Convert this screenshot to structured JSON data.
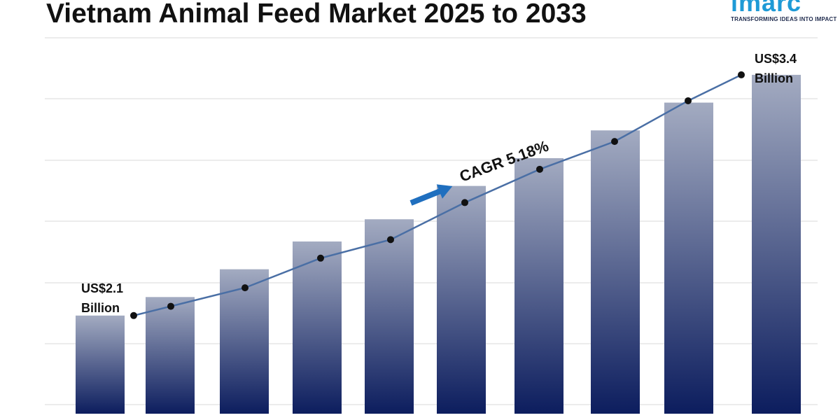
{
  "header": {
    "title": "Vietnam Animal Feed Market 2025 to 2033"
  },
  "logo": {
    "wordmark": "imarc",
    "tagline": "TRANSFORMING IDEAS INTO IMPACT",
    "color": "#1e9ad6"
  },
  "chart_data": {
    "type": "bar",
    "title": "Vietnam Animal Feed Market 2025 to 2033",
    "categories": [
      "",
      "",
      "",
      "",
      "",
      "",
      "",
      "",
      "",
      ""
    ],
    "series": [
      {
        "values": [
          2.1,
          2.2,
          2.35,
          2.5,
          2.62,
          2.8,
          2.95,
          3.1,
          3.25,
          3.4
        ]
      }
    ],
    "trend_line": {
      "values": [
        2.1,
        2.15,
        2.25,
        2.41,
        2.51,
        2.71,
        2.89,
        3.04,
        3.26,
        3.4
      ]
    },
    "ylim": [
      1.57,
      3.6
    ],
    "grid": true,
    "annotations": {
      "start_value": "US$2.1",
      "start_unit": "Billion",
      "end_value": "US$3.4",
      "end_unit": "Billion",
      "cagr": "CAGR 5.18%"
    },
    "colors": {
      "bar_top": "#a3abc1",
      "bar_bottom": "#0c1d5e",
      "line": "#4a6fa5",
      "marker": "#111111",
      "arrow": "#1f6fbf",
      "grid": "#d9d9d9"
    }
  }
}
